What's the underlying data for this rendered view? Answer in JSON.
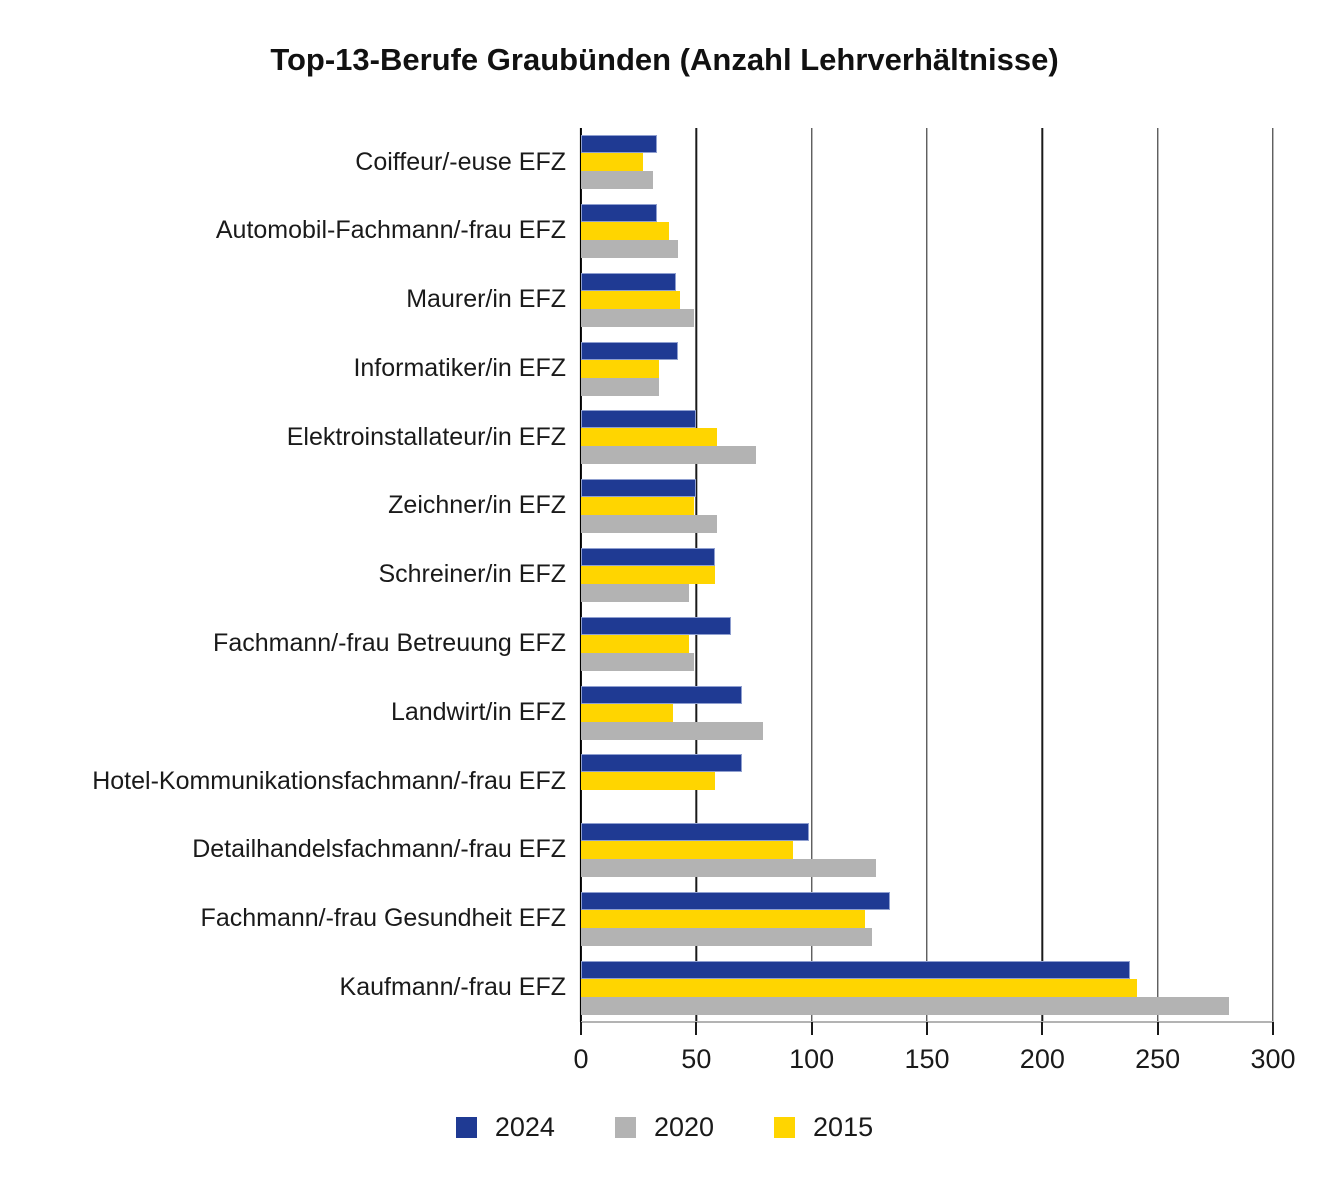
{
  "title": "Top-13-Berufe Graubünden (Anzahl Lehrverhältnisse)",
  "chart_data": {
    "type": "bar",
    "orientation": "horizontal",
    "title": "Top-13-Berufe Graubünden (Anzahl Lehrverhältnisse)",
    "xlabel": "",
    "ylabel": "",
    "xlim": [
      0,
      300
    ],
    "xticks": [
      0,
      50,
      100,
      150,
      200,
      250,
      300
    ],
    "grid": "vertical-lines",
    "legend_position": "bottom",
    "categories": [
      "Coiffeur/-euse EFZ",
      "Automobil-Fachmann/-frau EFZ",
      "Maurer/in EFZ",
      "Informatiker/in EFZ",
      "Elektroinstallateur/in EFZ",
      "Zeichner/in EFZ",
      "Schreiner/in EFZ",
      "Fachmann/-frau Betreuung EFZ",
      "Landwirt/in EFZ",
      "Hotel-Kommunikationsfachmann/-frau EFZ",
      "Detailhandelsfachmann/-frau EFZ",
      "Fachmann/-frau Gesundheit EFZ",
      "Kaufmann/-frau EFZ"
    ],
    "series": [
      {
        "name": "2024",
        "color": "#1f3a93",
        "border_color": "#8f9fd0",
        "values": [
          33,
          33,
          41,
          42,
          50,
          50,
          58,
          65,
          70,
          70,
          99,
          134,
          238
        ]
      },
      {
        "name": "2020",
        "color": "#b3b3b3",
        "border_color": null,
        "values": [
          31,
          42,
          49,
          34,
          76,
          59,
          47,
          49,
          79,
          null,
          128,
          126,
          281
        ]
      },
      {
        "name": "2015",
        "color": "#ffd500",
        "border_color": null,
        "values": [
          27,
          38,
          43,
          34,
          59,
          49,
          58,
          47,
          40,
          58,
          92,
          123,
          241
        ]
      }
    ],
    "bar_draw_order": [
      "2024",
      "2015",
      "2020"
    ],
    "legend_order": [
      "2024",
      "2020",
      "2015"
    ],
    "colors": {
      "gridline": "#1a1a1a",
      "axis_line": "#b3b3b3",
      "text": "#1a1a1a",
      "background": "#ffffff"
    }
  }
}
